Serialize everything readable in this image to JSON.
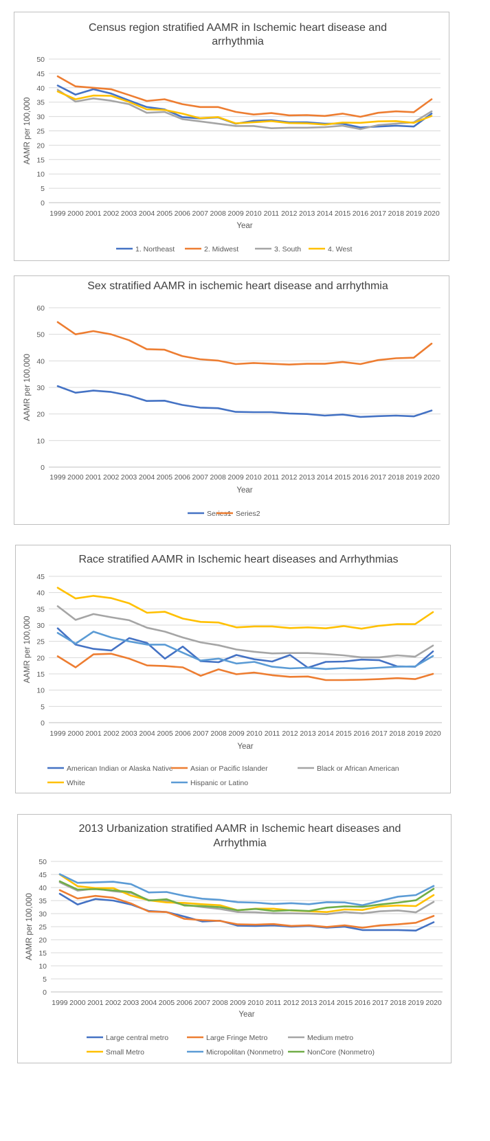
{
  "chart_data": [
    {
      "type": "line",
      "title_lines": [
        "Census region stratified AAMR in Ischemic heart disease and",
        "arrhythmia"
      ],
      "xlabel": "Year",
      "ylabel": "AAMR per 100,000",
      "ylim": [
        0,
        50
      ],
      "ystep": 5,
      "grid": true,
      "legend": "bottom",
      "categories": [
        "1999",
        "2000",
        "2001",
        "2002",
        "2003",
        "2004",
        "2005",
        "2006",
        "2007",
        "2008",
        "2009",
        "2010",
        "2011",
        "2012",
        "2013",
        "2014",
        "2015",
        "2016",
        "2017",
        "2018",
        "2019",
        "2020"
      ],
      "series": [
        {
          "name": "1. Northeast",
          "color": "#4472C4",
          "values": [
            40.8,
            37.6,
            39.5,
            38.0,
            35.6,
            33.3,
            32.5,
            29.8,
            29.3,
            29.7,
            27.5,
            28.5,
            28.7,
            28.0,
            28.0,
            27.5,
            27.5,
            26.2,
            26.5,
            26.8,
            26.5,
            31.0
          ]
        },
        {
          "name": "2. Midwest",
          "color": "#ED7D31",
          "values": [
            44.0,
            40.5,
            40.0,
            39.5,
            37.5,
            35.4,
            36.0,
            34.3,
            33.3,
            33.3,
            31.6,
            30.7,
            31.2,
            30.4,
            30.5,
            30.2,
            31.0,
            29.9,
            31.3,
            31.8,
            31.5,
            36.0
          ]
        },
        {
          "name": "3. South",
          "color": "#A5A5A5",
          "values": [
            39.3,
            35.2,
            36.3,
            35.5,
            34.3,
            31.3,
            31.6,
            29.1,
            28.3,
            27.5,
            26.7,
            26.7,
            25.9,
            26.1,
            26.1,
            26.3,
            26.8,
            25.6,
            27.0,
            27.5,
            28.0,
            31.8
          ]
        },
        {
          "name": "4. West",
          "color": "#FFC000",
          "values": [
            38.7,
            36.0,
            37.3,
            37.2,
            35.1,
            32.5,
            32.3,
            31.0,
            29.4,
            29.8,
            27.6,
            28.0,
            28.4,
            27.7,
            27.6,
            27.2,
            27.9,
            27.8,
            28.3,
            28.4,
            27.8,
            30.2
          ]
        }
      ]
    },
    {
      "type": "line",
      "title_lines": [
        "Sex stratified AAMR in ischemic heart disease and arrhythmia"
      ],
      "xlabel": "Year",
      "ylabel": "AAMR per 100,000",
      "ylim": [
        0,
        60
      ],
      "ystep": 10,
      "grid": true,
      "legend": "bottom",
      "categories": [
        "1999",
        "2000",
        "2001",
        "2002",
        "2003",
        "2004",
        "2005",
        "2006",
        "2007",
        "2008",
        "2009",
        "2010",
        "2011",
        "2012",
        "2013",
        "2014",
        "2015",
        "2016",
        "2017",
        "2018",
        "2019",
        "2020"
      ],
      "series": [
        {
          "name": "Series1",
          "color": "#4472C4",
          "values": [
            30.5,
            28.0,
            28.8,
            28.3,
            27.0,
            24.9,
            25.0,
            23.4,
            22.4,
            22.2,
            20.8,
            20.7,
            20.7,
            20.2,
            20.0,
            19.4,
            19.8,
            18.9,
            19.2,
            19.4,
            19.1,
            21.3
          ]
        },
        {
          "name": "Series2",
          "color": "#ED7D31",
          "values": [
            54.6,
            50.0,
            51.2,
            50.0,
            47.8,
            44.4,
            44.2,
            41.8,
            40.6,
            40.1,
            38.8,
            39.2,
            38.9,
            38.6,
            38.9,
            38.9,
            39.6,
            38.8,
            40.3,
            41.0,
            41.2,
            46.5
          ]
        }
      ]
    },
    {
      "type": "line",
      "title_lines": [
        "Race stratified AAMR in Ischemic heart diseases and Arrhythmias"
      ],
      "xlabel": "Year",
      "ylabel": "AAMR per 100,000",
      "ylim": [
        0,
        45
      ],
      "ystep": 5,
      "grid": true,
      "legend": "bottom",
      "categories": [
        "1999",
        "2000",
        "2001",
        "2002",
        "2003",
        "2004",
        "2005",
        "2006",
        "2007",
        "2008",
        "2009",
        "2010",
        "2011",
        "2012",
        "2013",
        "2014",
        "2015",
        "2016",
        "2017",
        "2018",
        "2019",
        "2020"
      ],
      "series": [
        {
          "name": "American Indian or Alaska Native",
          "color": "#4472C4",
          "values": [
            29.0,
            24.0,
            22.7,
            22.2,
            26.0,
            24.5,
            19.7,
            23.4,
            18.9,
            18.6,
            20.8,
            19.5,
            18.8,
            20.8,
            16.9,
            18.7,
            18.8,
            19.4,
            19.2,
            17.3,
            17.2,
            21.9
          ]
        },
        {
          "name": "Asian or Pacific Islander",
          "color": "#ED7D31",
          "values": [
            20.4,
            17.0,
            21.0,
            21.2,
            19.7,
            17.6,
            17.4,
            17.0,
            14.4,
            16.4,
            14.9,
            15.4,
            14.6,
            14.1,
            14.2,
            13.1,
            13.1,
            13.2,
            13.4,
            13.7,
            13.4,
            15.0
          ]
        },
        {
          "name": "Black or African American",
          "color": "#A5A5A5",
          "values": [
            35.8,
            31.6,
            33.4,
            32.4,
            31.5,
            29.2,
            28.0,
            26.2,
            24.7,
            23.8,
            22.5,
            21.8,
            21.3,
            21.4,
            21.4,
            21.1,
            20.7,
            20.1,
            20.1,
            20.7,
            20.3,
            23.7
          ]
        },
        {
          "name": "White",
          "color": "#FFC000",
          "values": [
            41.5,
            38.2,
            39.0,
            38.3,
            36.7,
            33.8,
            34.1,
            32.0,
            31.0,
            30.8,
            29.3,
            29.6,
            29.6,
            29.1,
            29.3,
            29.0,
            29.7,
            28.9,
            29.8,
            30.3,
            30.3,
            34.0
          ]
        },
        {
          "name": "Hispanic or Latino",
          "color": "#5B9BD5",
          "values": [
            27.6,
            24.3,
            28.0,
            26.2,
            25.0,
            24.0,
            24.0,
            21.5,
            19.1,
            19.7,
            18.2,
            18.7,
            17.2,
            16.7,
            16.9,
            16.5,
            16.8,
            16.6,
            16.9,
            17.2,
            17.3,
            20.5
          ]
        }
      ]
    },
    {
      "type": "line",
      "title_lines": [
        "2013 Urbanization stratified AAMR in Ischemic heart diseases and",
        "Arrhythmia"
      ],
      "xlabel": "Year",
      "ylabel": "AAMR per 100,000",
      "ylim": [
        0,
        50
      ],
      "ystep": 5,
      "grid": true,
      "legend": "bottom",
      "categories": [
        "1999",
        "2000",
        "2001",
        "2002",
        "2003",
        "2004",
        "2005",
        "2006",
        "2007",
        "2008",
        "2009",
        "2010",
        "2011",
        "2012",
        "2013",
        "2014",
        "2015",
        "2016",
        "2017",
        "2018",
        "2019",
        "2020"
      ],
      "series": [
        {
          "name": "Large central metro",
          "color": "#4472C4",
          "values": [
            37.6,
            33.5,
            35.6,
            35.0,
            33.5,
            31.0,
            30.6,
            28.9,
            27.0,
            27.3,
            25.4,
            25.3,
            25.5,
            25.0,
            25.3,
            24.6,
            25.0,
            23.7,
            23.7,
            23.7,
            23.5,
            26.7
          ]
        },
        {
          "name": "Large Fringe Metro",
          "color": "#ED7D31",
          "values": [
            39.0,
            35.8,
            36.8,
            36.1,
            33.9,
            30.8,
            30.6,
            28.0,
            27.5,
            27.2,
            25.9,
            25.8,
            26.0,
            25.3,
            25.5,
            24.9,
            25.5,
            24.6,
            25.5,
            25.9,
            26.5,
            29.1
          ]
        },
        {
          "name": "Medium metro",
          "color": "#A5A5A5",
          "values": [
            42.0,
            38.8,
            39.6,
            38.6,
            37.9,
            35.2,
            34.8,
            33.4,
            32.5,
            31.8,
            30.6,
            30.5,
            30.1,
            30.1,
            30.0,
            29.8,
            30.6,
            30.1,
            30.9,
            31.2,
            30.5,
            34.5
          ]
        },
        {
          "name": "Small Metro",
          "color": "#FFC000",
          "values": [
            45.0,
            40.5,
            39.8,
            39.8,
            36.9,
            35.1,
            34.3,
            34.1,
            33.6,
            33.2,
            31.3,
            31.9,
            31.9,
            31.2,
            30.9,
            30.6,
            31.6,
            31.4,
            32.8,
            33.1,
            32.9,
            37.1
          ]
        },
        {
          "name": "Micropolitan (Nonmetro)",
          "color": "#5B9BD5",
          "values": [
            45.1,
            41.8,
            42.0,
            42.2,
            41.3,
            38.1,
            38.3,
            36.8,
            35.7,
            35.3,
            34.4,
            34.2,
            33.7,
            34.0,
            33.6,
            34.4,
            34.3,
            33.2,
            34.9,
            36.5,
            37.1,
            40.6
          ]
        },
        {
          "name": "NonCore (Nonmetro)",
          "color": "#70AD47",
          "values": [
            42.4,
            39.2,
            39.4,
            38.9,
            38.3,
            35.0,
            35.5,
            33.1,
            32.9,
            32.5,
            31.3,
            31.8,
            31.0,
            31.3,
            31.0,
            32.3,
            32.8,
            32.6,
            33.5,
            34.2,
            35.1,
            39.5
          ]
        }
      ]
    }
  ]
}
